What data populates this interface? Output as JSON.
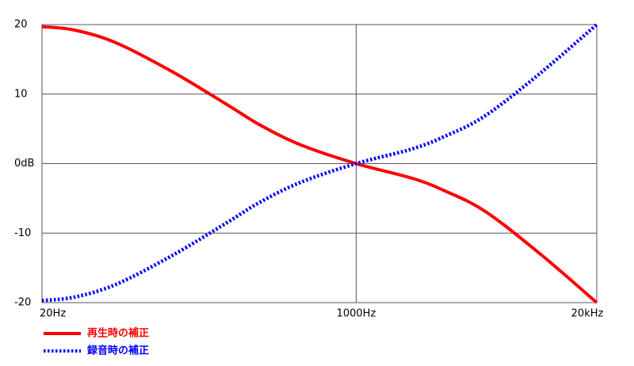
{
  "chart_data": {
    "type": "line",
    "x": [
      20,
      30,
      50,
      100,
      200,
      300,
      500,
      1000,
      2000,
      3000,
      5000,
      10000,
      20000
    ],
    "xscale": "log",
    "xlim": [
      20,
      20000
    ],
    "xticks": [
      {
        "value": 20,
        "label": "20Hz"
      },
      {
        "value": 1000,
        "label": "1000Hz"
      },
      {
        "value": 20000,
        "label": "20kHz"
      }
    ],
    "ylim": [
      -20,
      20
    ],
    "yticks": [
      {
        "value": -20,
        "label": "-20"
      },
      {
        "value": -10,
        "label": "-10"
      },
      {
        "value": 0,
        "label": "0dB"
      },
      10,
      20
    ],
    "grid": true,
    "legend": "bottom-left",
    "series": [
      {
        "name": "再生時の補正",
        "color": "#ff0000",
        "style": "solid",
        "values": [
          19.7,
          19.2,
          17.4,
          13.3,
          8.5,
          5.6,
          2.7,
          0,
          -2.1,
          -3.9,
          -6.9,
          -13.1,
          -20
        ]
      },
      {
        "name": "録音時の補正",
        "color": "#0000ff",
        "style": "dotted",
        "values": [
          -19.7,
          -19.2,
          -17.4,
          -13.3,
          -8.5,
          -5.6,
          -2.7,
          0,
          2.1,
          3.9,
          6.9,
          13.1,
          20
        ]
      }
    ]
  }
}
